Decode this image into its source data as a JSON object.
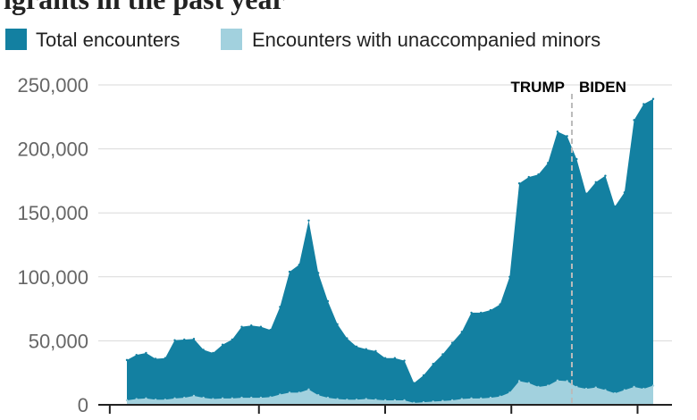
{
  "colors": {
    "total": "#1380A1",
    "minors": "#A2D1DE",
    "grid": "#D9D9D9",
    "axis": "#222222",
    "divider": "#BBBBBB"
  },
  "chart_data": {
    "type": "area",
    "title": "igrants in the past year",
    "legend_position": "top-left",
    "ylim": [
      0,
      250000
    ],
    "yticks": [
      0,
      50000,
      100000,
      150000,
      200000,
      250000
    ],
    "ytick_labels": [
      "0",
      "50,000",
      "100,000",
      "150,000",
      "200,000",
      "250,000"
    ],
    "grid": true,
    "annotations": {
      "left": "TRUMP",
      "right": "BIDEN",
      "divider_index": 47
    },
    "series": [
      {
        "name": "Total encounters",
        "values": [
          35000,
          39000,
          40500,
          36000,
          36500,
          50500,
          51000,
          51500,
          43000,
          40500,
          47000,
          51000,
          61000,
          62000,
          61000,
          58500,
          76500,
          104000,
          109500,
          144000,
          103000,
          81000,
          63000,
          52000,
          45500,
          43500,
          42000,
          36500,
          36500,
          34500,
          17000,
          23000,
          32000,
          39500,
          48500,
          57000,
          72000,
          72000,
          74000,
          78500,
          100000,
          173000,
          178000,
          180000,
          189000,
          213500,
          210000,
          192000,
          165000,
          174000,
          179000,
          155000,
          166000,
          222500,
          235000,
          239000
        ]
      },
      {
        "name": "Encounters with unaccompanied minors",
        "values": [
          3500,
          4500,
          5000,
          4000,
          4000,
          5000,
          5500,
          7000,
          5500,
          4500,
          5000,
          5000,
          5500,
          5500,
          5500,
          6000,
          8000,
          9500,
          9500,
          12000,
          7500,
          5500,
          4500,
          4000,
          4000,
          4500,
          4000,
          3500,
          3500,
          3500,
          1500,
          2000,
          2500,
          3000,
          3500,
          4500,
          5000,
          5000,
          5500,
          6500,
          9500,
          18500,
          17000,
          14000,
          15000,
          19000,
          18500,
          14000,
          12500,
          13500,
          11500,
          9000,
          11500,
          14000,
          12500,
          15000
        ]
      }
    ]
  }
}
